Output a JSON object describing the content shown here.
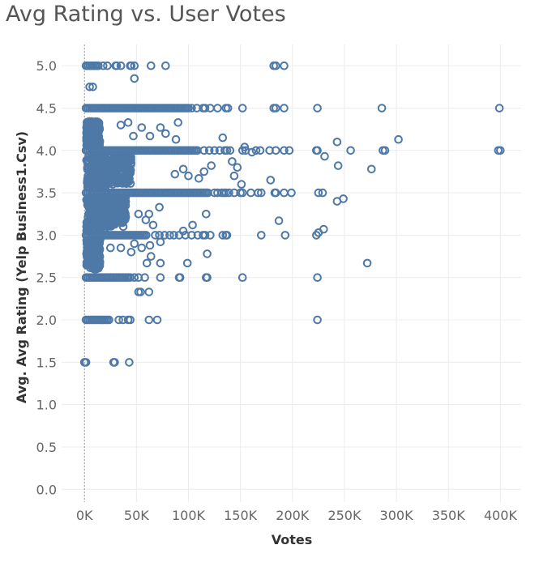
{
  "chart_data": {
    "type": "scatter",
    "title": "Avg Rating vs. User Votes",
    "xlabel": "Votes",
    "ylabel": "Avg. Avg Rating (Yelp Business1.Csv)",
    "xlim": [
      -22000,
      420000
    ],
    "ylim": [
      -0.15,
      5.25
    ],
    "x_ticks": [
      "0K",
      "50K",
      "100K",
      "150K",
      "200K",
      "250K",
      "300K",
      "350K",
      "400K"
    ],
    "x_tick_values": [
      0,
      50000,
      100000,
      150000,
      200000,
      250000,
      300000,
      350000,
      400000
    ],
    "y_ticks": [
      "0.0",
      "0.5",
      "1.0",
      "1.5",
      "2.0",
      "2.5",
      "3.0",
      "3.5",
      "4.0",
      "4.5",
      "5.0"
    ],
    "y_tick_values": [
      0,
      0.5,
      1,
      1.5,
      2,
      2.5,
      3,
      3.5,
      4,
      4.5,
      5
    ],
    "marker_color": "#4e79a7",
    "rating_bands": [
      {
        "y": 5.0,
        "dense_to": 15000
      },
      {
        "y": 4.5,
        "dense_to": 100000
      },
      {
        "y": 4.0,
        "dense_to": 110000
      },
      {
        "y": 3.5,
        "dense_to": 120000
      },
      {
        "y": 3.0,
        "dense_to": 60000
      },
      {
        "y": 2.5,
        "dense_to": 45000
      },
      {
        "y": 2.0,
        "dense_to": 25000
      }
    ],
    "dense_regions": [
      {
        "x": [
          2000,
          20000
        ],
        "y": [
          3.05,
          3.45
        ]
      },
      {
        "x": [
          2000,
          20000
        ],
        "y": [
          3.55,
          3.95
        ]
      },
      {
        "x": [
          2000,
          15000
        ],
        "y": [
          4.05,
          4.35
        ]
      },
      {
        "x": [
          2000,
          15000
        ],
        "y": [
          2.6,
          2.95
        ]
      },
      {
        "x": [
          20000,
          40000
        ],
        "y": [
          3.1,
          3.45
        ]
      },
      {
        "x": [
          20000,
          45000
        ],
        "y": [
          3.6,
          3.95
        ]
      }
    ],
    "points": [
      [
        0,
        1.5
      ],
      [
        1500,
        1.5
      ],
      [
        28000,
        1.5
      ],
      [
        29000,
        1.5
      ],
      [
        43000,
        1.5
      ],
      [
        33000,
        2.0
      ],
      [
        37000,
        2.0
      ],
      [
        42000,
        2.0
      ],
      [
        44000,
        2.0
      ],
      [
        62000,
        2.0
      ],
      [
        70000,
        2.0
      ],
      [
        224000,
        2.0
      ],
      [
        48000,
        2.5
      ],
      [
        52000,
        2.5
      ],
      [
        58000,
        2.5
      ],
      [
        73000,
        2.5
      ],
      [
        91000,
        2.5
      ],
      [
        92000,
        2.5
      ],
      [
        117000,
        2.5
      ],
      [
        118000,
        2.5
      ],
      [
        152000,
        2.5
      ],
      [
        224000,
        2.5
      ],
      [
        52000,
        2.33
      ],
      [
        54000,
        2.33
      ],
      [
        62000,
        2.33
      ],
      [
        60000,
        2.67
      ],
      [
        64000,
        2.75
      ],
      [
        73000,
        2.67
      ],
      [
        99000,
        2.67
      ],
      [
        118000,
        2.78
      ],
      [
        272000,
        2.67
      ],
      [
        25000,
        2.85
      ],
      [
        35000,
        2.85
      ],
      [
        45000,
        2.8
      ],
      [
        48000,
        2.9
      ],
      [
        55000,
        2.85
      ],
      [
        63000,
        2.88
      ],
      [
        73000,
        2.92
      ],
      [
        68000,
        3.0
      ],
      [
        72000,
        3.0
      ],
      [
        77000,
        3.0
      ],
      [
        82000,
        3.0
      ],
      [
        86000,
        3.0
      ],
      [
        91000,
        3.0
      ],
      [
        97000,
        3.0
      ],
      [
        103000,
        3.0
      ],
      [
        109000,
        3.0
      ],
      [
        114000,
        3.0
      ],
      [
        116000,
        3.0
      ],
      [
        121000,
        3.0
      ],
      [
        133000,
        3.0
      ],
      [
        136000,
        3.0
      ],
      [
        137000,
        3.0
      ],
      [
        170000,
        3.0
      ],
      [
        193000,
        3.0
      ],
      [
        223000,
        3.0
      ],
      [
        225000,
        3.03
      ],
      [
        230000,
        3.07
      ],
      [
        72000,
        3.33
      ],
      [
        52000,
        3.25
      ],
      [
        62000,
        3.25
      ],
      [
        117000,
        3.25
      ],
      [
        187000,
        3.17
      ],
      [
        66000,
        3.12
      ],
      [
        95000,
        3.05
      ],
      [
        104000,
        3.12
      ],
      [
        59000,
        3.18
      ],
      [
        125000,
        3.5
      ],
      [
        128000,
        3.5
      ],
      [
        132000,
        3.5
      ],
      [
        134000,
        3.5
      ],
      [
        136000,
        3.5
      ],
      [
        139000,
        3.5
      ],
      [
        144000,
        3.5
      ],
      [
        150000,
        3.5
      ],
      [
        152000,
        3.5
      ],
      [
        160000,
        3.5
      ],
      [
        167000,
        3.5
      ],
      [
        170000,
        3.5
      ],
      [
        183000,
        3.5
      ],
      [
        184000,
        3.5
      ],
      [
        192000,
        3.5
      ],
      [
        199000,
        3.5
      ],
      [
        225000,
        3.5
      ],
      [
        229000,
        3.5
      ],
      [
        243000,
        3.4
      ],
      [
        249000,
        3.43
      ],
      [
        151000,
        3.6
      ],
      [
        179000,
        3.65
      ],
      [
        144000,
        3.7
      ],
      [
        115000,
        3.75
      ],
      [
        122000,
        3.82
      ],
      [
        147000,
        3.8
      ],
      [
        142000,
        3.87
      ],
      [
        100000,
        3.7
      ],
      [
        110000,
        3.67
      ],
      [
        87000,
        3.72
      ],
      [
        95000,
        3.78
      ],
      [
        115000,
        4.0
      ],
      [
        120000,
        4.0
      ],
      [
        125000,
        4.0
      ],
      [
        130000,
        4.0
      ],
      [
        135000,
        4.0
      ],
      [
        137000,
        4.0
      ],
      [
        140000,
        4.0
      ],
      [
        152000,
        4.0
      ],
      [
        155000,
        4.0
      ],
      [
        165000,
        4.0
      ],
      [
        169000,
        4.0
      ],
      [
        178000,
        4.0
      ],
      [
        184000,
        4.0
      ],
      [
        192000,
        4.0
      ],
      [
        197000,
        4.0
      ],
      [
        223000,
        4.0
      ],
      [
        224000,
        4.0
      ],
      [
        256000,
        4.0
      ],
      [
        287000,
        4.0
      ],
      [
        289000,
        4.0
      ],
      [
        398000,
        4.0
      ],
      [
        400000,
        4.0
      ],
      [
        231000,
        3.93
      ],
      [
        244000,
        3.82
      ],
      [
        276000,
        3.78
      ],
      [
        243000,
        4.1
      ],
      [
        302000,
        4.13
      ],
      [
        154000,
        4.04
      ],
      [
        161000,
        3.98
      ],
      [
        133000,
        4.15
      ],
      [
        88000,
        4.13
      ],
      [
        78000,
        4.2
      ],
      [
        73000,
        4.27
      ],
      [
        90000,
        4.33
      ],
      [
        47000,
        4.17
      ],
      [
        55000,
        4.27
      ],
      [
        63000,
        4.17
      ],
      [
        35000,
        4.3
      ],
      [
        42000,
        4.33
      ],
      [
        100000,
        4.5
      ],
      [
        103000,
        4.5
      ],
      [
        108000,
        4.5
      ],
      [
        114000,
        4.5
      ],
      [
        116000,
        4.5
      ],
      [
        121000,
        4.5
      ],
      [
        128000,
        4.5
      ],
      [
        136000,
        4.5
      ],
      [
        138000,
        4.5
      ],
      [
        152000,
        4.5
      ],
      [
        182000,
        4.5
      ],
      [
        184000,
        4.5
      ],
      [
        192000,
        4.5
      ],
      [
        224000,
        4.5
      ],
      [
        286000,
        4.5
      ],
      [
        399000,
        4.5
      ],
      [
        5000,
        4.75
      ],
      [
        8000,
        4.75
      ],
      [
        48000,
        4.85
      ],
      [
        18000,
        5.0
      ],
      [
        22000,
        5.0
      ],
      [
        30000,
        5.0
      ],
      [
        31000,
        5.0
      ],
      [
        35000,
        5.0
      ],
      [
        44000,
        5.0
      ],
      [
        45000,
        5.0
      ],
      [
        48000,
        5.0
      ],
      [
        64000,
        5.0
      ],
      [
        78000,
        5.0
      ],
      [
        182000,
        5.0
      ],
      [
        184000,
        5.0
      ],
      [
        192000,
        5.0
      ]
    ]
  }
}
